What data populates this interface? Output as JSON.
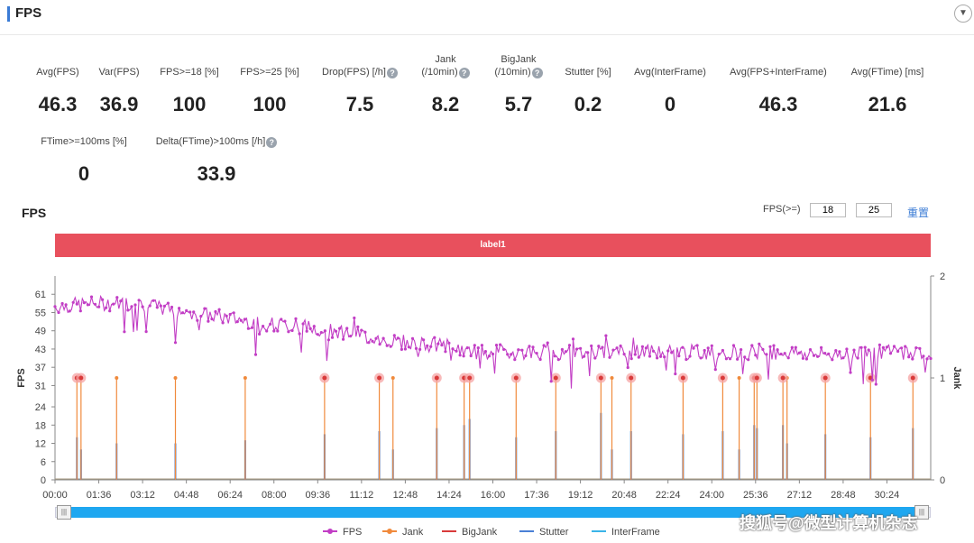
{
  "header": {
    "title": "FPS",
    "collapse_icon": "chevron-down-icon"
  },
  "stats": [
    {
      "label": "Avg(FPS)",
      "value": "46.3",
      "help": false
    },
    {
      "label": "Var(FPS)",
      "value": "36.9",
      "help": false
    },
    {
      "label": "FPS>=18 [%]",
      "value": "100",
      "help": false
    },
    {
      "label": "FPS>=25 [%]",
      "value": "100",
      "help": false
    },
    {
      "label": "Drop(FPS) [/h]",
      "value": "7.5",
      "help": true
    },
    {
      "label": "Jank",
      "label2": "(/10min)",
      "value": "8.2",
      "help": true
    },
    {
      "label": "BigJank",
      "label2": "(/10min)",
      "value": "5.7",
      "help": true
    },
    {
      "label": "Stutter [%]",
      "value": "0.2",
      "help": false
    },
    {
      "label": "Avg(InterFrame)",
      "value": "0",
      "help": false
    },
    {
      "label": "Avg(FPS+InterFrame)",
      "value": "46.3",
      "help": false
    },
    {
      "label": "Avg(FTime) [ms]",
      "value": "21.6",
      "help": false
    },
    {
      "label": "FTime>=100ms [%]",
      "value": "0",
      "help": false
    },
    {
      "label": "Delta(FTime)>100ms [/h]",
      "value": "33.9",
      "help": true
    }
  ],
  "chart_header": {
    "title": "FPS",
    "threshold_label": "FPS(>=)",
    "threshold1": "18",
    "threshold2": "25",
    "reset_label": "重置"
  },
  "label_bar": "label1",
  "watermark": "搜狐号@微型计算机杂志",
  "colors": {
    "fps": "#c23ec5",
    "jank": "#f08a3c",
    "bigjank": "#d93a3a",
    "stutter": "#4a80d6",
    "interframe": "#3ab4e8",
    "label_bar": "#e8505d",
    "scrollbar": "#1ea7f0"
  },
  "chart_data": {
    "type": "line",
    "xlabel": "",
    "ylabel": "FPS",
    "y2label": "Jank",
    "x_ticks": [
      "00:00",
      "01:36",
      "03:12",
      "04:48",
      "06:24",
      "08:00",
      "09:36",
      "11:12",
      "12:48",
      "14:24",
      "16:00",
      "17:36",
      "19:12",
      "20:48",
      "22:24",
      "24:00",
      "25:36",
      "27:12",
      "28:48",
      "30:24"
    ],
    "y_ticks": [
      0,
      6,
      12,
      18,
      24,
      31,
      37,
      43,
      49,
      55,
      61
    ],
    "y_range": [
      0,
      67
    ],
    "y2_ticks": [
      0,
      1,
      2
    ],
    "y2_range": [
      0,
      2
    ],
    "x_range_min": [
      0,
      32.0
    ],
    "fps_trend_min": [
      0,
      1.5,
      3,
      3.5,
      5,
      6.5,
      8,
      9.5,
      11,
      12,
      13,
      14.5,
      15,
      16,
      17,
      18,
      19,
      20,
      21,
      22,
      23,
      24,
      25,
      26,
      27,
      28,
      29,
      30,
      31,
      32
    ],
    "fps_trend_val": [
      57,
      58,
      58,
      57,
      55,
      53,
      51,
      50,
      48,
      46,
      45,
      44,
      42,
      42,
      42,
      42,
      42,
      42,
      42,
      42,
      42,
      42,
      42,
      42,
      42,
      41,
      42,
      42,
      42,
      42
    ],
    "jank_events_min": [
      0.8,
      0.95,
      2.25,
      4.4,
      6.95,
      9.85,
      11.85,
      12.35,
      13.95,
      14.95,
      15.15,
      16.85,
      18.3,
      19.95,
      20.35,
      21.05,
      22.95,
      24.4,
      25.0,
      25.55,
      25.65,
      26.6,
      26.75,
      28.15,
      29.8,
      31.35
    ],
    "stutter_heights": [
      14,
      10,
      12,
      12,
      13,
      15,
      16,
      10,
      17,
      18,
      20,
      14,
      16,
      22,
      10,
      16,
      15,
      16,
      10,
      18,
      17,
      18,
      12,
      15,
      14,
      17
    ],
    "bigjank_min": [
      0.8,
      0.95,
      9.85,
      11.85,
      13.95,
      14.95,
      15.15,
      16.85,
      18.3,
      19.95,
      21.05,
      22.95,
      24.4,
      25.55,
      25.65,
      26.6,
      28.15,
      29.8,
      31.35
    ],
    "legend": [
      "FPS",
      "Jank",
      "BigJank",
      "Stutter",
      "InterFrame"
    ]
  }
}
